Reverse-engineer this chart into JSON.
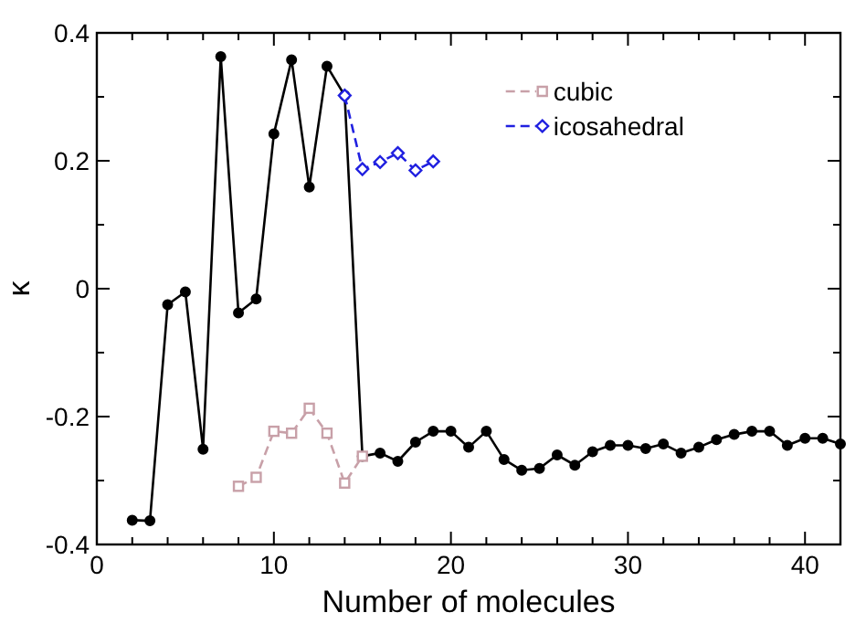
{
  "chart_data": {
    "type": "line",
    "xlabel": "Number of molecules",
    "ylabel": "κ",
    "xlim": [
      0,
      42
    ],
    "ylim": [
      -0.4,
      0.4
    ],
    "xticks": [
      0,
      10,
      20,
      30,
      40
    ],
    "yticks": [
      -0.4,
      -0.2,
      0,
      0.2,
      0.4
    ],
    "grid": false,
    "legend": "top right",
    "series": [
      {
        "color": "#000000",
        "marker": "circle",
        "line_style": "solid",
        "x": [
          2,
          3,
          4,
          5,
          6,
          7,
          8,
          9,
          10,
          11,
          12,
          13,
          14,
          15,
          16,
          17,
          18,
          19,
          20,
          21,
          22,
          23,
          24,
          25,
          26,
          27,
          28,
          29,
          30,
          31,
          32,
          33,
          34,
          35,
          36,
          37,
          38,
          39,
          40,
          41,
          42
        ],
        "values": [
          -0.362,
          -0.363,
          -0.025,
          -0.005,
          -0.251,
          0.363,
          -0.038,
          -0.016,
          0.242,
          0.358,
          0.159,
          0.348,
          0.302,
          -0.262,
          -0.257,
          -0.27,
          -0.24,
          -0.223,
          -0.223,
          -0.248,
          -0.223,
          -0.267,
          -0.284,
          -0.281,
          -0.26,
          -0.276,
          -0.255,
          -0.245,
          -0.245,
          -0.25,
          -0.243,
          -0.257,
          -0.248,
          -0.236,
          -0.228,
          -0.223,
          -0.223,
          -0.245,
          -0.234,
          -0.234,
          -0.243
        ]
      },
      {
        "name": "cubic",
        "color": "#c8a0a8",
        "marker": "square",
        "line_style": "dashed",
        "x": [
          8,
          9,
          10,
          11,
          12,
          13,
          14,
          15
        ],
        "values": [
          -0.309,
          -0.295,
          -0.223,
          -0.226,
          -0.187,
          -0.226,
          -0.304,
          -0.262
        ]
      },
      {
        "name": "icosahedral",
        "color": "#2020e0",
        "marker": "diamond",
        "line_style": "dashed",
        "x": [
          14,
          15,
          16,
          17,
          18,
          19
        ],
        "values": [
          0.302,
          0.187,
          0.198,
          0.212,
          0.185,
          0.199
        ]
      }
    ]
  }
}
